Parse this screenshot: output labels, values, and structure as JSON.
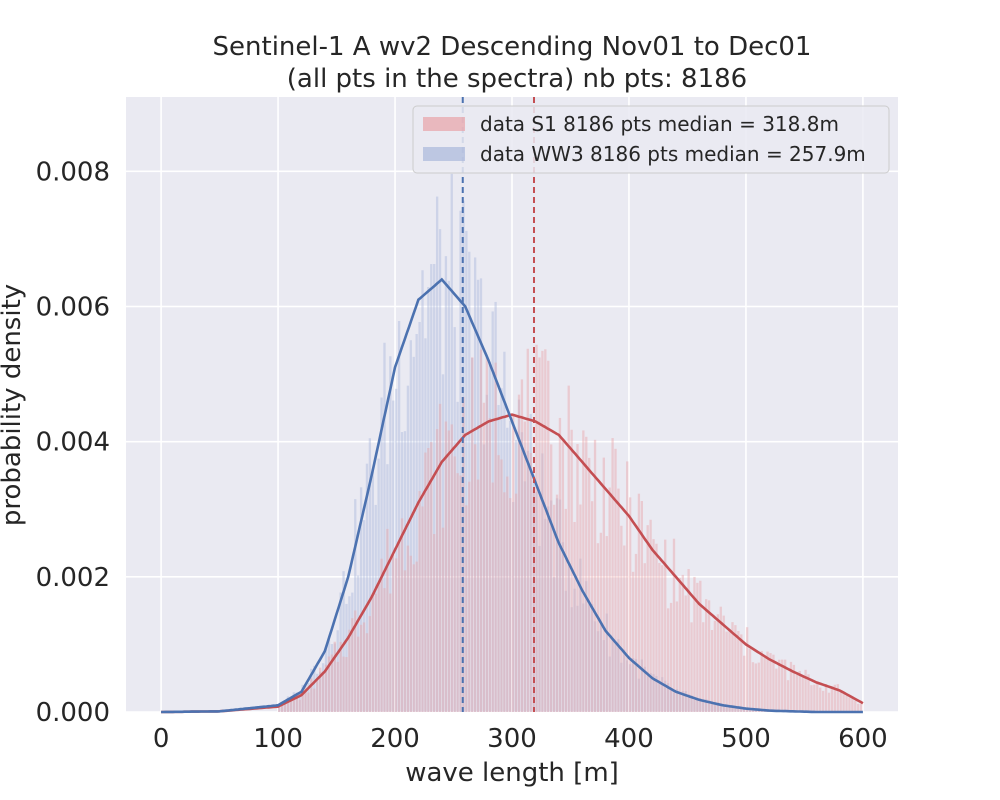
{
  "chart_data": {
    "type": "histogram",
    "title": {
      "line1": "Sentinel-1 A wv2 Descending Nov01 to Dec01",
      "line2": "(all pts in the spectra) nb pts: 8186"
    },
    "xlabel": "wave length [m]",
    "ylabel": "probability density",
    "xlim": [
      -30,
      630
    ],
    "ylim": [
      0,
      0.0091
    ],
    "xticks": [
      "0",
      "100",
      "200",
      "300",
      "400",
      "500",
      "600"
    ],
    "yticks": [
      "0.000",
      "0.002",
      "0.004",
      "0.006",
      "0.008"
    ],
    "grid": true,
    "legend_position": "top-right",
    "colors": {
      "s1": "#c44e52",
      "ww3": "#4c72b0",
      "s1_hist": "#e8a3a8",
      "ww3_hist": "#aab8dc",
      "background": "#eaeaf2",
      "grid": "#ffffff"
    },
    "series": [
      {
        "name": "data S1 8186 pts median = 318.8m",
        "median": 318.8,
        "fit_curve": {
          "x": [
            0,
            50,
            100,
            120,
            140,
            160,
            180,
            200,
            220,
            240,
            260,
            280,
            300,
            320,
            340,
            360,
            380,
            400,
            420,
            440,
            460,
            480,
            500,
            520,
            540,
            560,
            580,
            600
          ],
          "y": [
            0,
            1e-05,
            8e-05,
            0.00025,
            0.0006,
            0.0011,
            0.0017,
            0.0024,
            0.0031,
            0.0037,
            0.0041,
            0.0043,
            0.0044,
            0.0043,
            0.0041,
            0.0037,
            0.0033,
            0.0029,
            0.0024,
            0.002,
            0.0016,
            0.0013,
            0.001,
            0.00078,
            0.0006,
            0.00044,
            0.00032,
            0.00013
          ]
        }
      },
      {
        "name": "data WW3 8186 pts median = 257.9m",
        "median": 257.9,
        "fit_curve": {
          "x": [
            0,
            50,
            100,
            120,
            140,
            160,
            180,
            200,
            220,
            240,
            260,
            280,
            300,
            320,
            340,
            360,
            380,
            400,
            420,
            440,
            460,
            480,
            500,
            520,
            540,
            560,
            580,
            600
          ],
          "y": [
            0,
            1e-05,
            0.0001,
            0.0003,
            0.0009,
            0.002,
            0.0035,
            0.0051,
            0.0061,
            0.0064,
            0.006,
            0.0052,
            0.0043,
            0.0034,
            0.0025,
            0.0018,
            0.0012,
            0.0008,
            0.0005,
            0.0003,
            0.00018,
            0.0001,
            5e-05,
            2e-05,
            1e-05,
            0,
            0,
            0
          ]
        }
      }
    ],
    "histograms": {
      "bin_width": 2.5,
      "range": [
        100,
        600
      ]
    }
  }
}
